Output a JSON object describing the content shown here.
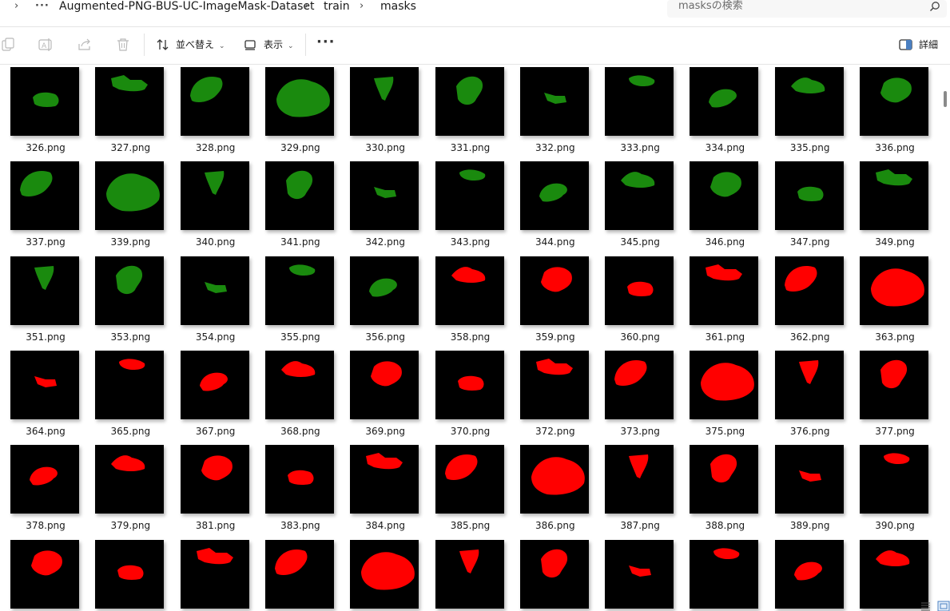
{
  "breadcrumb": {
    "items": [
      "Augmented-PNG-BUS-UC-ImageMask-Dataset",
      "train",
      "masks"
    ],
    "expand_icon": "chevron-right-icon",
    "overflow_icon": "ellipsis-icon"
  },
  "search": {
    "placeholder": "masksの検索",
    "icon": "search-icon"
  },
  "toolbar": {
    "sort_label": "並べ替え",
    "view_label": "表示",
    "details_label": "詳細",
    "icons": [
      "copy-icon",
      "rename-icon",
      "share-icon",
      "delete-icon",
      "sort-icon",
      "view-icon",
      "more-icon",
      "details-pane-icon"
    ]
  },
  "colors": {
    "green": "#1a8a0e",
    "red": "#ff0000",
    "thumb_bg": "#000000"
  },
  "files": [
    {
      "name": "326.png",
      "color": "green"
    },
    {
      "name": "327.png",
      "color": "green"
    },
    {
      "name": "328.png",
      "color": "green"
    },
    {
      "name": "329.png",
      "color": "green"
    },
    {
      "name": "330.png",
      "color": "green"
    },
    {
      "name": "331.png",
      "color": "green"
    },
    {
      "name": "332.png",
      "color": "green"
    },
    {
      "name": "333.png",
      "color": "green"
    },
    {
      "name": "334.png",
      "color": "green"
    },
    {
      "name": "335.png",
      "color": "green"
    },
    {
      "name": "336.png",
      "color": "green"
    },
    {
      "name": "337.png",
      "color": "green"
    },
    {
      "name": "339.png",
      "color": "green"
    },
    {
      "name": "340.png",
      "color": "green"
    },
    {
      "name": "341.png",
      "color": "green"
    },
    {
      "name": "342.png",
      "color": "green"
    },
    {
      "name": "343.png",
      "color": "green"
    },
    {
      "name": "344.png",
      "color": "green"
    },
    {
      "name": "345.png",
      "color": "green"
    },
    {
      "name": "346.png",
      "color": "green"
    },
    {
      "name": "347.png",
      "color": "green"
    },
    {
      "name": "349.png",
      "color": "green"
    },
    {
      "name": "351.png",
      "color": "green"
    },
    {
      "name": "353.png",
      "color": "green"
    },
    {
      "name": "354.png",
      "color": "green"
    },
    {
      "name": "355.png",
      "color": "green"
    },
    {
      "name": "356.png",
      "color": "green"
    },
    {
      "name": "358.png",
      "color": "red"
    },
    {
      "name": "359.png",
      "color": "red"
    },
    {
      "name": "360.png",
      "color": "red"
    },
    {
      "name": "361.png",
      "color": "red"
    },
    {
      "name": "362.png",
      "color": "red"
    },
    {
      "name": "363.png",
      "color": "red"
    },
    {
      "name": "364.png",
      "color": "red"
    },
    {
      "name": "365.png",
      "color": "red"
    },
    {
      "name": "367.png",
      "color": "red"
    },
    {
      "name": "368.png",
      "color": "red"
    },
    {
      "name": "369.png",
      "color": "red"
    },
    {
      "name": "370.png",
      "color": "red"
    },
    {
      "name": "372.png",
      "color": "red"
    },
    {
      "name": "373.png",
      "color": "red"
    },
    {
      "name": "375.png",
      "color": "red"
    },
    {
      "name": "376.png",
      "color": "red"
    },
    {
      "name": "377.png",
      "color": "red"
    },
    {
      "name": "378.png",
      "color": "red"
    },
    {
      "name": "379.png",
      "color": "red"
    },
    {
      "name": "381.png",
      "color": "red"
    },
    {
      "name": "383.png",
      "color": "red"
    },
    {
      "name": "384.png",
      "color": "red"
    },
    {
      "name": "385.png",
      "color": "red"
    },
    {
      "name": "386.png",
      "color": "red"
    },
    {
      "name": "387.png",
      "color": "red"
    },
    {
      "name": "388.png",
      "color": "red"
    },
    {
      "name": "389.png",
      "color": "red"
    },
    {
      "name": "390.png",
      "color": "red"
    },
    {
      "name": "",
      "color": "red"
    },
    {
      "name": "",
      "color": "red"
    },
    {
      "name": "",
      "color": "red"
    },
    {
      "name": "",
      "color": "red"
    },
    {
      "name": "",
      "color": "red"
    },
    {
      "name": "",
      "color": "red"
    },
    {
      "name": "",
      "color": "red"
    },
    {
      "name": "",
      "color": "red"
    },
    {
      "name": "",
      "color": "red"
    },
    {
      "name": "",
      "color": "red"
    },
    {
      "name": "",
      "color": "red"
    }
  ]
}
